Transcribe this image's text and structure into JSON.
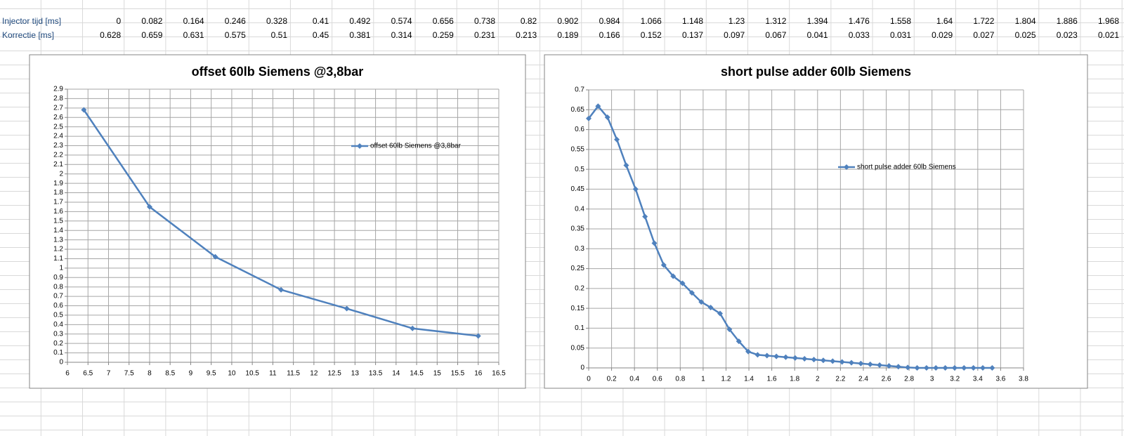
{
  "table": {
    "rows": [
      {
        "label": "Injector tijd [ms]",
        "values": [
          0,
          0.082,
          0.164,
          0.246,
          0.328,
          0.41,
          0.492,
          0.574,
          0.656,
          0.738,
          0.82,
          0.902,
          0.984,
          1.066,
          1.148,
          1.23,
          1.312,
          1.394,
          1.476,
          1.558,
          1.64,
          1.722,
          1.804,
          1.886,
          1.968
        ]
      },
      {
        "label": "Korrectie [ms]",
        "values": [
          0.628,
          0.659,
          0.631,
          0.575,
          0.51,
          0.45,
          0.381,
          0.314,
          0.259,
          0.231,
          0.213,
          0.189,
          0.166,
          0.152,
          0.137,
          0.097,
          0.067,
          0.041,
          0.033,
          0.031,
          0.029,
          0.027,
          0.025,
          0.023,
          0.021
        ]
      }
    ]
  },
  "chart_data": [
    {
      "type": "line",
      "title": "offset 60lb Siemens @3,8bar",
      "x": [
        6.4,
        8,
        9.6,
        11.2,
        12.8,
        14.4,
        16
      ],
      "series": [
        {
          "name": "offset 60lb Siemens @3,8bar",
          "color": "#4f81bd",
          "values": [
            2.68,
            1.65,
            1.12,
            0.77,
            0.57,
            0.36,
            0.28
          ]
        }
      ],
      "xlim": [
        6,
        16.5
      ],
      "xticks": [
        6,
        6.5,
        7,
        7.5,
        8,
        8.5,
        9,
        9.5,
        10,
        10.5,
        11,
        11.5,
        12,
        12.5,
        13,
        13.5,
        14,
        14.5,
        15,
        15.5,
        16,
        16.5
      ],
      "ylim": [
        0,
        2.9
      ],
      "yticks": [
        0,
        0.1,
        0.2,
        0.3,
        0.4,
        0.5,
        0.6,
        0.7,
        0.8,
        0.9,
        1,
        1.1,
        1.2,
        1.3,
        1.4,
        1.5,
        1.6,
        1.7,
        1.8,
        1.9,
        2,
        2.1,
        2.2,
        2.3,
        2.4,
        2.5,
        2.6,
        2.7,
        2.8,
        2.9
      ],
      "grid": true,
      "legend": "right"
    },
    {
      "type": "line",
      "title": "short pulse adder 60lb Siemens",
      "x": [
        0,
        0.082,
        0.164,
        0.246,
        0.328,
        0.41,
        0.492,
        0.574,
        0.656,
        0.738,
        0.82,
        0.902,
        0.984,
        1.066,
        1.148,
        1.23,
        1.312,
        1.394,
        1.476,
        1.558,
        1.64,
        1.722,
        1.804,
        1.886,
        1.968,
        2.05,
        2.132,
        2.214,
        2.296,
        2.378,
        2.46,
        2.542,
        2.624,
        2.706,
        2.788,
        2.87,
        2.952,
        3.034,
        3.116,
        3.198,
        3.28,
        3.362,
        3.444,
        3.526
      ],
      "series": [
        {
          "name": "short pulse adder 60lb Siemens",
          "color": "#4f81bd",
          "values": [
            0.628,
            0.659,
            0.631,
            0.575,
            0.51,
            0.45,
            0.381,
            0.314,
            0.259,
            0.231,
            0.213,
            0.189,
            0.166,
            0.152,
            0.137,
            0.097,
            0.067,
            0.041,
            0.033,
            0.031,
            0.029,
            0.027,
            0.025,
            0.023,
            0.021,
            0.019,
            0.017,
            0.015,
            0.013,
            0.011,
            0.009,
            0.007,
            0.005,
            0.003,
            0.001,
            0,
            0,
            0,
            0,
            0,
            0,
            0,
            0,
            0
          ]
        }
      ],
      "xlim": [
        0,
        3.8
      ],
      "xticks": [
        0,
        0.2,
        0.4,
        0.6,
        0.8,
        1,
        1.2,
        1.4,
        1.6,
        1.8,
        2,
        2.2,
        2.4,
        2.6,
        2.8,
        3,
        3.2,
        3.4,
        3.6,
        3.8
      ],
      "ylim": [
        0,
        0.7
      ],
      "yticks": [
        0,
        0.05,
        0.1,
        0.15,
        0.2,
        0.25,
        0.3,
        0.35,
        0.4,
        0.45,
        0.5,
        0.55,
        0.6,
        0.65,
        0.7
      ],
      "grid": true,
      "legend": "right"
    }
  ]
}
